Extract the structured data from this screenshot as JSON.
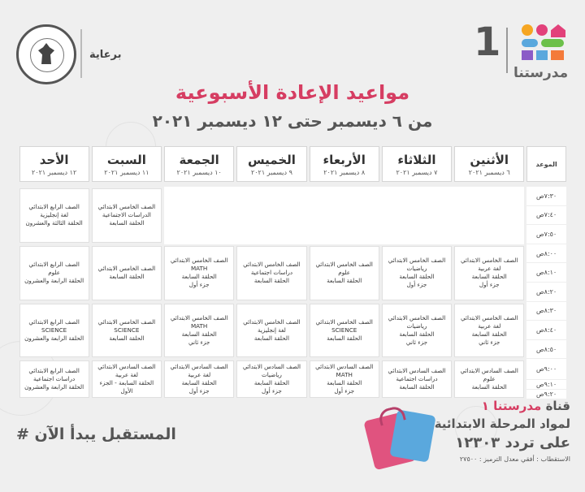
{
  "header": {
    "sponsor_label": "برعاية",
    "brand_one": "1",
    "brand_name": "مدرستنا"
  },
  "title": "مواعيد الإعادة الأسبوعية",
  "subtitle": "من ٦ ديسمبر حتى ١٢ ديسمبر ٢٠٢١",
  "schedule": {
    "mawid_label": "الموعد",
    "days": [
      {
        "name": "الأثنين",
        "date": "٦ ديسمبر ٢٠٢١"
      },
      {
        "name": "الثلاثاء",
        "date": "٧ ديسمبر ٢٠٢١"
      },
      {
        "name": "الأربعاء",
        "date": "٨ ديسمبر ٢٠٢١"
      },
      {
        "name": "الخميس",
        "date": "٩ ديسمبر ٢٠٢١"
      },
      {
        "name": "الجمعة",
        "date": "١٠ ديسمبر ٢٠٢١"
      },
      {
        "name": "السبت",
        "date": "١١ ديسمبر ٢٠٢١"
      },
      {
        "name": "الأحد",
        "date": "١٢ ديسمبر ٢٠٢١"
      }
    ],
    "times": [
      "٧:٣٠ص",
      "٧:٤٠ص",
      "٧:٥٠ص",
      "٨:٠٠ص",
      "٨:١٠ص",
      "٨:٢٠ص",
      "٨:٣٠ص",
      "٨:٤٠ص",
      "٨:٥٠ص",
      "٩:٠٠ص",
      "٩:١٠ص",
      "٩:٢٠ص"
    ],
    "lessons": [
      {
        "day": 5,
        "block": 0,
        "lines": [
          "الصف الخامس الابتدائي",
          "الدراسات الاجتماعية",
          "الحلقة السابعة"
        ]
      },
      {
        "day": 6,
        "block": 0,
        "lines": [
          "الصف الرابع الابتدائي",
          "لغة إنجليزية",
          "الحلقة الثالثة والعشرون"
        ]
      },
      {
        "day": 0,
        "block": 1,
        "lines": [
          "الصف الخامس الابتدائي",
          "لغة عربية",
          "الحلقة السابعة",
          "جزء أول"
        ]
      },
      {
        "day": 1,
        "block": 1,
        "lines": [
          "الصف الخامس الابتدائي",
          "رياضيات",
          "الحلقة السابعة",
          "جزء أول"
        ]
      },
      {
        "day": 2,
        "block": 1,
        "lines": [
          "الصف الخامس الابتدائي",
          "علوم",
          "الحلقة السابعة"
        ]
      },
      {
        "day": 3,
        "block": 1,
        "lines": [
          "الصف الخامس الابتدائي",
          "دراسات اجتماعية",
          "الحلقة السابعة"
        ]
      },
      {
        "day": 4,
        "block": 1,
        "lines": [
          "الصف الخامس الابتدائي",
          "MATH",
          "الحلقة السابعة",
          "جزء أول"
        ]
      },
      {
        "day": 5,
        "block": 1,
        "lines": [
          "الصف الخامس الابتدائي",
          "الحلقة السابعة"
        ]
      },
      {
        "day": 6,
        "block": 1,
        "lines": [
          "الصف الرابع الابتدائي",
          "علوم",
          "الحلقة الرابعة والعشرون"
        ]
      },
      {
        "day": 0,
        "block": 2,
        "lines": [
          "الصف الخامس الابتدائي",
          "لغة عربية",
          "الحلقة السابعة",
          "جزء ثاني"
        ]
      },
      {
        "day": 1,
        "block": 2,
        "lines": [
          "الصف الخامس الابتدائي",
          "رياضيات",
          "الحلقة السابعة",
          "جزء ثاني"
        ]
      },
      {
        "day": 2,
        "block": 2,
        "lines": [
          "الصف الخامس الابتدائي",
          "SCIENCE",
          "الحلقة السابعة"
        ]
      },
      {
        "day": 3,
        "block": 2,
        "lines": [
          "الصف الخامس الابتدائي",
          "لغة إنجليزية",
          "الحلقة السابعة"
        ]
      },
      {
        "day": 4,
        "block": 2,
        "lines": [
          "الصف الخامس الابتدائي",
          "MATH",
          "الحلقة السابعة",
          "جزء ثاني"
        ]
      },
      {
        "day": 5,
        "block": 2,
        "lines": [
          "الصف الخامس الابتدائي",
          "SCIENCE",
          "الحلقة السابعة"
        ]
      },
      {
        "day": 6,
        "block": 2,
        "lines": [
          "الصف الرابع الابتدائي",
          "SCIENCE",
          "الحلقة الرابعة والعشرون"
        ]
      },
      {
        "day": 0,
        "block": 3,
        "lines": [
          "الصف السادس الابتدائي",
          "علوم",
          "الحلقة السابعة"
        ]
      },
      {
        "day": 1,
        "block": 3,
        "lines": [
          "الصف السادس الابتدائي",
          "دراسات اجتماعية",
          "الحلقة السابعة"
        ]
      },
      {
        "day": 2,
        "block": 3,
        "lines": [
          "الصف السادس الابتدائي",
          "MATH",
          "الحلقة السابعة",
          "جزء أول"
        ]
      },
      {
        "day": 3,
        "block": 3,
        "lines": [
          "الصف السادس الابتدائي",
          "رياضيات",
          "الحلقة السابعة",
          "جزء أول"
        ]
      },
      {
        "day": 4,
        "block": 3,
        "lines": [
          "الصف السادس الابتدائي",
          "لغة عربية",
          "الحلقة السابعة",
          "جزء أول"
        ]
      },
      {
        "day": 5,
        "block": 3,
        "lines": [
          "الصف السادس الابتدائي",
          "لغة عربية",
          "الحلقة السابعة - الجزء",
          "الأول"
        ]
      },
      {
        "day": 6,
        "block": 3,
        "lines": [
          "الصف الرابع الابتدائي",
          "دراسات اجتماعية",
          "الحلقة الرابعة والعشرون"
        ]
      }
    ]
  },
  "footer": {
    "hashtag": "# المستقبل يبدأ الآن",
    "channel_prefix": "قناة",
    "channel_name": "مدرستنا ١",
    "channel_line2": "لمواد المرحلة الابتدائية",
    "channel_line3": "على تردد ١٢٣٠٣",
    "channel_line4": "الاستقطاب : أفقي معدل الترميز : ٢٧٥٠٠"
  },
  "colors": {
    "title": "#d63d62",
    "logo": [
      "#f6a623",
      "#e2417a",
      "#5aa8dd",
      "#6cc04a",
      "#8b5cc7",
      "#f47a3a"
    ]
  },
  "icons": [
    "ministry-seal-icon",
    "madrasatna-logo-icon",
    "school-bags-icon"
  ]
}
